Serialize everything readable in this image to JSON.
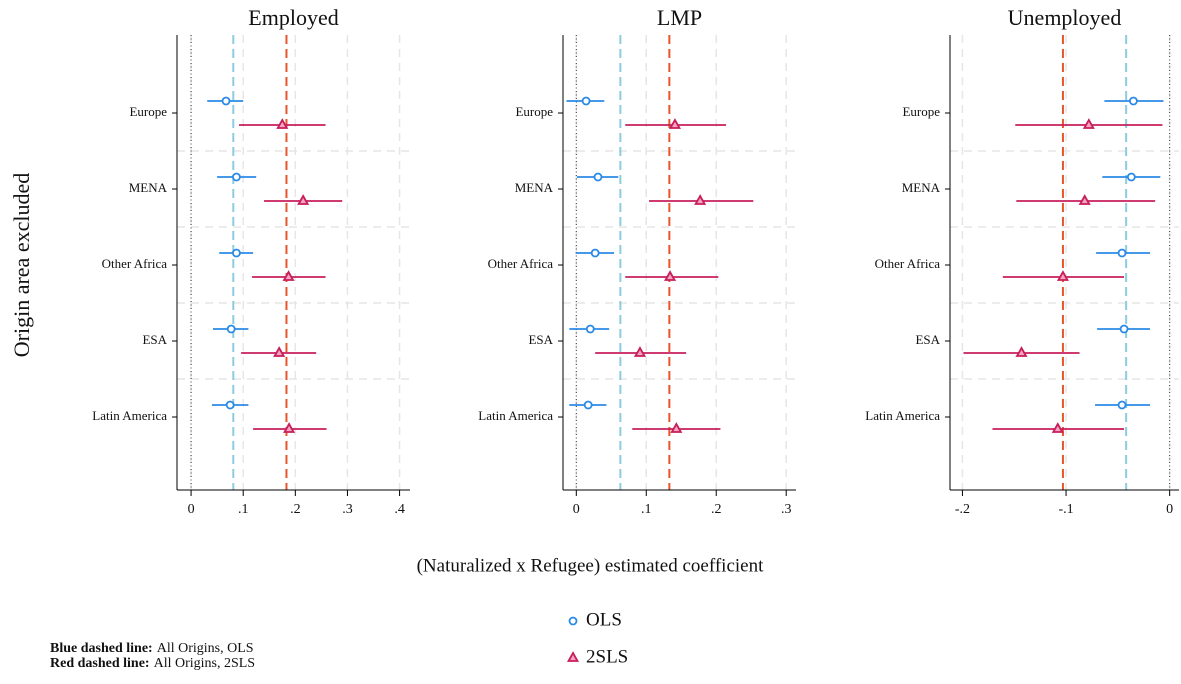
{
  "chart_data": [
    {
      "type": "coefplot",
      "title": "Employed",
      "categories": [
        "Europe",
        "MENA",
        "Other Africa",
        "ESA",
        "Latin America"
      ],
      "series": [
        {
          "name": "OLS",
          "color": "#2b8ae6",
          "marker": "circle",
          "values": [
            0.067,
            0.087,
            0.087,
            0.077,
            0.075
          ],
          "ci_low": [
            0.031,
            0.05,
            0.054,
            0.042,
            0.04
          ],
          "ci_high": [
            0.1,
            0.125,
            0.119,
            0.11,
            0.11
          ]
        },
        {
          "name": "2SLS",
          "color": "#c81e5b",
          "marker": "triangle",
          "values": [
            0.175,
            0.215,
            0.187,
            0.169,
            0.188
          ],
          "ci_low": [
            0.092,
            0.14,
            0.117,
            0.096,
            0.119
          ],
          "ci_high": [
            0.258,
            0.29,
            0.258,
            0.24,
            0.26
          ]
        }
      ],
      "reference_lines": [
        {
          "value": 0.081,
          "color": "#8ccbe0"
        },
        {
          "value": 0.183,
          "color": "#e8552a"
        }
      ],
      "xlim": [
        -0.027,
        0.42
      ],
      "xticks": [
        0,
        {
          "value": 0.1,
          "label": ".1"
        },
        {
          "value": 0.2,
          "label": ".2"
        },
        {
          "value": 0.3,
          "label": ".3"
        },
        {
          "value": 0.4,
          "label": ".4"
        }
      ],
      "grid": true
    },
    {
      "type": "coefplot",
      "title": "LMP",
      "categories": [
        "Europe",
        "MENA",
        "Other Africa",
        "ESA",
        "Latin America"
      ],
      "series": [
        {
          "name": "OLS",
          "color": "#2b8ae6",
          "marker": "circle",
          "values": [
            0.014,
            0.031,
            0.027,
            0.02,
            0.017
          ],
          "ci_low": [
            -0.014,
            0.001,
            -0.001,
            -0.01,
            -0.01
          ],
          "ci_high": [
            0.04,
            0.06,
            0.054,
            0.047,
            0.043
          ]
        },
        {
          "name": "2SLS",
          "color": "#c81e5b",
          "marker": "triangle",
          "values": [
            0.141,
            0.177,
            0.134,
            0.091,
            0.143
          ],
          "ci_low": [
            0.07,
            0.104,
            0.07,
            0.027,
            0.08
          ],
          "ci_high": [
            0.214,
            0.253,
            0.203,
            0.157,
            0.206
          ]
        }
      ],
      "reference_lines": [
        {
          "value": 0.063,
          "color": "#8ccbe0"
        },
        {
          "value": 0.133,
          "color": "#e8552a"
        }
      ],
      "xlim": [
        -0.019,
        0.314
      ],
      "xticks": [
        0,
        {
          "value": 0.1,
          "label": ".1"
        },
        {
          "value": 0.2,
          "label": ".2"
        },
        {
          "value": 0.3,
          "label": ".3"
        }
      ],
      "grid": true
    },
    {
      "type": "coefplot",
      "title": "Unemployed",
      "categories": [
        "Europe",
        "MENA",
        "Other Africa",
        "ESA",
        "Latin America"
      ],
      "series": [
        {
          "name": "OLS",
          "color": "#2b8ae6",
          "marker": "circle",
          "values": [
            -0.035,
            -0.037,
            -0.046,
            -0.044,
            -0.046
          ],
          "ci_low": [
            -0.063,
            -0.065,
            -0.071,
            -0.07,
            -0.072
          ],
          "ci_high": [
            -0.006,
            -0.009,
            -0.019,
            -0.019,
            -0.019
          ]
        },
        {
          "name": "2SLS",
          "color": "#c81e5b",
          "marker": "triangle",
          "values": [
            -0.078,
            -0.082,
            -0.103,
            -0.143,
            -0.108
          ],
          "ci_low": [
            -0.149,
            -0.148,
            -0.161,
            -0.199,
            -0.171
          ],
          "ci_high": [
            -0.007,
            -0.014,
            -0.044,
            -0.087,
            -0.044
          ]
        }
      ],
      "reference_lines": [
        {
          "value": -0.042,
          "color": "#8ccbe0"
        },
        {
          "value": -0.103,
          "color": "#e8552a"
        }
      ],
      "xlim": [
        -0.212,
        0.009
      ],
      "xticks": [
        {
          "value": -0.2,
          "label": "-.2"
        },
        {
          "value": -0.1,
          "label": "-.1"
        },
        0
      ],
      "grid": true
    }
  ],
  "y_label": "Origin area excluded",
  "x_label": "(Naturalized x Refugee) estimated coefficient",
  "notes": [
    {
      "bold": "Blue dashed line:",
      "text": "All Origins, OLS"
    },
    {
      "bold": "Red dashed line:",
      "text": "All Origins, 2SLS"
    }
  ]
}
